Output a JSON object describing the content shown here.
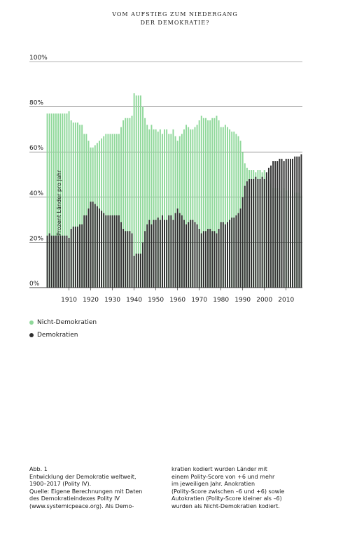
{
  "title_lines": [
    "VOM AUFSTIEG ZUM NIEDERGANG",
    "DER DEMOKRATIE?"
  ],
  "legend": [
    {
      "label": "Nicht-Demokratien",
      "color": "#8fd89a"
    },
    {
      "label": "Demokratien",
      "color": "#2e2e2e"
    }
  ],
  "caption_left": [
    "Abb. 1",
    "Entwicklung der Demokratie weltweit,",
    "1900–2017 (Polity IV).",
    "Quelle: Eigene Berechnungen mit Daten",
    "des Demokratieindexes Polity IV",
    "(www.systemicpeace.org). Als Demo-"
  ],
  "caption_right": [
    "kratien kodiert wurden Länder mit",
    "einem Polity-Score von +6 und mehr",
    "im jeweiligen Jahr. Anokratien",
    "(Polity-Score zwischen –6 und +6) sowie",
    "Autokratien (Polity-Score kleiner als –6)",
    "wurden als Nicht-Demokratien kodiert."
  ],
  "chart_data": {
    "type": "bar",
    "ylabel": "Prozent Länder pro Jahr",
    "ylim": [
      0,
      100
    ],
    "y_ticks": [
      0,
      20,
      40,
      60,
      80,
      100
    ],
    "y_tick_labels": [
      "0%",
      "20%",
      "40%",
      "60%",
      "80%",
      "100%"
    ],
    "x_tick_labels": [
      "1910",
      "1920",
      "1930",
      "1940",
      "1950",
      "1960",
      "1970",
      "1980",
      "1990",
      "2000",
      "2010"
    ],
    "x_ticks": [
      1910,
      1920,
      1930,
      1940,
      1950,
      1960,
      1970,
      1980,
      1990,
      2000,
      2010
    ],
    "grid": true,
    "legend_position": "bottom-left",
    "x": [
      1900,
      1901,
      1902,
      1903,
      1904,
      1905,
      1906,
      1907,
      1908,
      1909,
      1910,
      1911,
      1912,
      1913,
      1914,
      1915,
      1916,
      1917,
      1918,
      1919,
      1920,
      1921,
      1922,
      1923,
      1924,
      1925,
      1926,
      1927,
      1928,
      1929,
      1930,
      1931,
      1932,
      1933,
      1934,
      1935,
      1936,
      1937,
      1938,
      1939,
      1940,
      1941,
      1942,
      1943,
      1944,
      1945,
      1946,
      1947,
      1948,
      1949,
      1950,
      1951,
      1952,
      1953,
      1954,
      1955,
      1956,
      1957,
      1958,
      1959,
      1960,
      1961,
      1962,
      1963,
      1964,
      1965,
      1966,
      1967,
      1968,
      1969,
      1970,
      1971,
      1972,
      1973,
      1974,
      1975,
      1976,
      1977,
      1978,
      1979,
      1980,
      1981,
      1982,
      1983,
      1984,
      1985,
      1986,
      1987,
      1988,
      1989,
      1990,
      1991,
      1992,
      1993,
      1994,
      1995,
      1996,
      1997,
      1998,
      1999,
      2000,
      2001,
      2002,
      2003,
      2004,
      2005,
      2006,
      2007,
      2008,
      2009,
      2010,
      2011,
      2012,
      2013,
      2014,
      2015,
      2016,
      2017
    ],
    "series": [
      {
        "name": "Nicht-Demokratien",
        "color": "#8fd89a",
        "values": [
          77,
          77,
          77,
          77,
          77,
          77,
          77,
          77,
          77,
          77,
          78,
          74,
          73,
          73,
          73,
          72,
          72,
          68,
          68,
          65,
          62,
          62,
          63,
          64,
          65,
          66,
          67,
          68,
          68,
          68,
          68,
          68,
          68,
          68,
          71,
          74,
          75,
          75,
          75,
          76,
          86,
          85,
          85,
          85,
          80,
          75,
          72,
          70,
          72,
          70,
          70,
          69,
          70,
          68,
          70,
          70,
          68,
          68,
          70,
          67,
          65,
          67,
          68,
          70,
          72,
          71,
          70,
          70,
          71,
          72,
          74,
          76,
          75,
          75,
          74,
          74,
          75,
          75,
          76,
          74,
          71,
          71,
          72,
          71,
          70,
          69,
          69,
          68,
          67,
          65,
          60,
          55,
          53,
          52,
          52,
          52,
          51,
          52,
          52,
          51,
          52,
          49,
          47,
          46,
          44,
          44,
          44,
          43,
          43,
          44,
          43,
          43,
          43,
          43,
          42,
          42,
          42,
          41
        ]
      },
      {
        "name": "Demokratien",
        "color": "#2e2e2e",
        "values": [
          23,
          24,
          23,
          23,
          23,
          23,
          23,
          23,
          23,
          23,
          22,
          26,
          27,
          27,
          27,
          28,
          28,
          32,
          32,
          35,
          38,
          38,
          37,
          36,
          35,
          34,
          33,
          32,
          32,
          32,
          32,
          32,
          32,
          32,
          29,
          26,
          25,
          25,
          25,
          24,
          14,
          15,
          15,
          15,
          20,
          25,
          28,
          30,
          28,
          30,
          30,
          31,
          30,
          32,
          30,
          30,
          32,
          32,
          30,
          33,
          35,
          33,
          32,
          30,
          28,
          29,
          30,
          30,
          29,
          28,
          26,
          24,
          25,
          25,
          26,
          26,
          25,
          25,
          24,
          26,
          29,
          29,
          28,
          29,
          30,
          31,
          31,
          32,
          33,
          35,
          40,
          45,
          47,
          48,
          48,
          48,
          49,
          48,
          48,
          49,
          48,
          51,
          53,
          54,
          56,
          56,
          56,
          57,
          57,
          56,
          57,
          57,
          57,
          57,
          58,
          58,
          58,
          59
        ]
      }
    ]
  }
}
